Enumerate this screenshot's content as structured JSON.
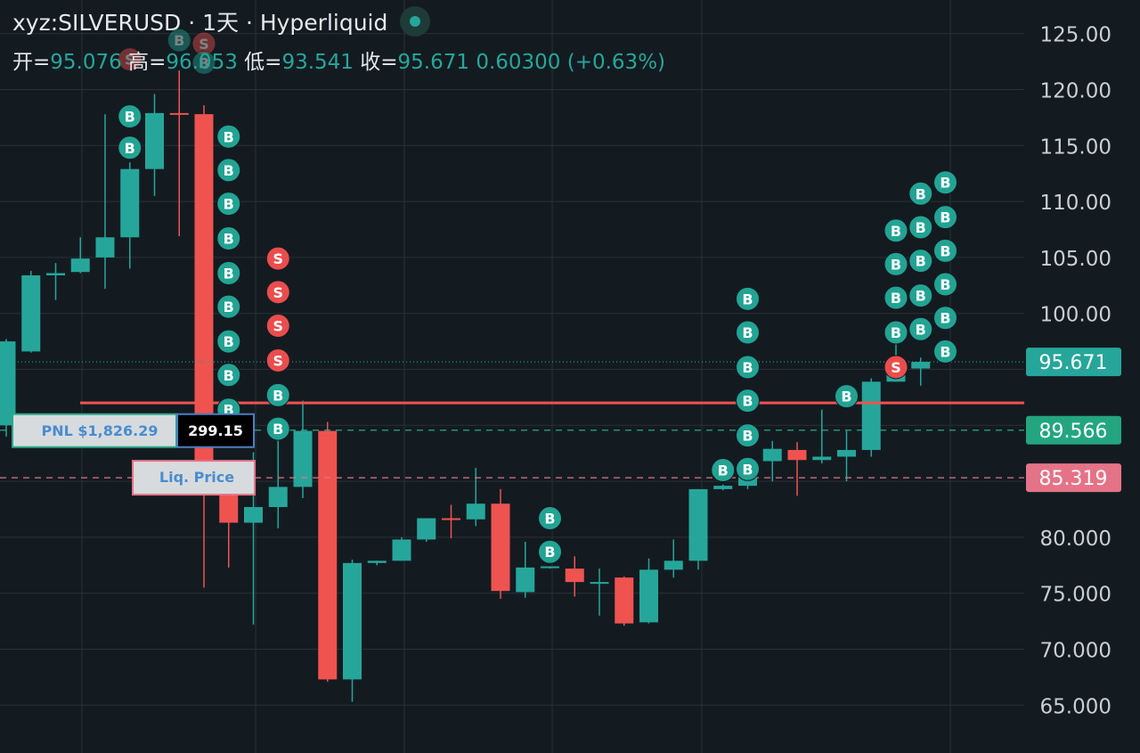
{
  "header": {
    "symbol_line": "xyz:SILVERUSD · 1天 · Hyperliquid",
    "open_label": "开=",
    "open_value": "95.076",
    "high_label": "高=",
    "high_value": "96.053",
    "low_label": "低=",
    "low_value": "93.541",
    "close_label": "收=",
    "close_value": "95.671",
    "change_value": "0.60300 (+0.63%)"
  },
  "colors": {
    "up": "#26a69a",
    "down": "#ef5350",
    "background": "#131b21",
    "grid": "#2a3036",
    "liq": "#e57387",
    "avg": "#2aa889",
    "axis_text": "#c9ced3"
  },
  "price_axis": {
    "ticks": [
      "125.00",
      "120.00",
      "115.00",
      "110.00",
      "105.00",
      "100.00",
      "80.000",
      "75.000",
      "70.000",
      "65.000"
    ]
  },
  "chart_data": {
    "type": "candlestick",
    "y_range": [
      60,
      127
    ],
    "price_labels": {
      "last": "95.671",
      "avg_entry": "89.566",
      "liquidation": "85.319"
    },
    "levels": {
      "last": 95.671,
      "avg_entry": 89.566,
      "liquidation": 85.319,
      "take_profit": 92.0
    },
    "position": {
      "pnl_label": "PNL $1,826.29",
      "size": "299.15",
      "liq_label": "Liq. Price"
    },
    "candles": [
      {
        "o": 90.0,
        "h": 97.7,
        "l": 89.0,
        "c": 97.5
      },
      {
        "o": 96.6,
        "h": 103.8,
        "l": 96.5,
        "c": 103.4
      },
      {
        "o": 103.4,
        "h": 104.5,
        "l": 101.2,
        "c": 103.6
      },
      {
        "o": 103.7,
        "h": 106.8,
        "l": 103.6,
        "c": 104.9
      },
      {
        "o": 105.0,
        "h": 117.8,
        "l": 102.2,
        "c": 106.8
      },
      {
        "o": 106.8,
        "h": 113.5,
        "l": 104.0,
        "c": 112.9
      },
      {
        "o": 112.9,
        "h": 119.6,
        "l": 110.5,
        "c": 117.9
      },
      {
        "o": 117.9,
        "h": 121.7,
        "l": 106.9,
        "c": 117.8
      },
      {
        "o": 117.8,
        "h": 118.6,
        "l": 75.5,
        "c": 84.5
      },
      {
        "o": 84.5,
        "h": 86.5,
        "l": 77.3,
        "c": 81.3
      },
      {
        "o": 81.3,
        "h": 87.6,
        "l": 72.2,
        "c": 82.7
      },
      {
        "o": 82.7,
        "h": 89.4,
        "l": 80.8,
        "c": 84.5
      },
      {
        "o": 84.5,
        "h": 92.2,
        "l": 83.5,
        "c": 89.5
      },
      {
        "o": 89.5,
        "h": 90.3,
        "l": 67.1,
        "c": 67.3
      },
      {
        "o": 67.3,
        "h": 78.0,
        "l": 65.3,
        "c": 77.7
      },
      {
        "o": 77.7,
        "h": 77.9,
        "l": 77.5,
        "c": 77.9
      },
      {
        "o": 77.9,
        "h": 80.0,
        "l": 77.9,
        "c": 79.8
      },
      {
        "o": 79.8,
        "h": 81.7,
        "l": 79.6,
        "c": 81.7
      },
      {
        "o": 81.7,
        "h": 82.9,
        "l": 79.9,
        "c": 81.6
      },
      {
        "o": 81.6,
        "h": 86.2,
        "l": 81.0,
        "c": 83.0
      },
      {
        "o": 83.0,
        "h": 84.3,
        "l": 74.5,
        "c": 75.2
      },
      {
        "o": 75.1,
        "h": 79.6,
        "l": 74.6,
        "c": 77.3
      },
      {
        "o": 77.3,
        "h": 77.4,
        "l": 77.2,
        "c": 77.4
      },
      {
        "o": 77.2,
        "h": 78.3,
        "l": 74.7,
        "c": 76.0
      },
      {
        "o": 76.0,
        "h": 77.2,
        "l": 73.0,
        "c": 76.0
      },
      {
        "o": 76.4,
        "h": 76.5,
        "l": 72.1,
        "c": 72.3
      },
      {
        "o": 72.4,
        "h": 78.1,
        "l": 72.3,
        "c": 77.1
      },
      {
        "o": 77.1,
        "h": 79.8,
        "l": 76.4,
        "c": 77.9
      },
      {
        "o": 77.9,
        "h": 84.3,
        "l": 77.1,
        "c": 84.3
      },
      {
        "o": 84.3,
        "h": 84.7,
        "l": 84.2,
        "c": 84.6
      },
      {
        "o": 84.6,
        "h": 86.9,
        "l": 84.3,
        "c": 86.8
      },
      {
        "o": 86.8,
        "h": 88.6,
        "l": 85.0,
        "c": 87.9
      },
      {
        "o": 87.8,
        "h": 88.5,
        "l": 83.7,
        "c": 86.9
      },
      {
        "o": 86.9,
        "h": 91.4,
        "l": 86.6,
        "c": 87.2
      },
      {
        "o": 87.2,
        "h": 89.5,
        "l": 85.0,
        "c": 87.8
      },
      {
        "o": 87.8,
        "h": 94.2,
        "l": 87.2,
        "c": 93.9
      },
      {
        "o": 93.9,
        "h": 97.7,
        "l": 94.0,
        "c": 95.0
      },
      {
        "o": 95.076,
        "h": 96.053,
        "l": 93.541,
        "c": 95.671
      }
    ],
    "markers": [
      {
        "i": 5,
        "t": "B",
        "p": 117.6
      },
      {
        "i": 5,
        "t": "B",
        "p": 114.8
      },
      {
        "i": 5,
        "t": "S",
        "p": 122.7
      },
      {
        "i": 7,
        "t": "B",
        "p": 124.4
      },
      {
        "i": 8,
        "t": "S",
        "p": 124.1
      },
      {
        "i": 8,
        "t": "B",
        "p": 122.4
      },
      {
        "i": 9,
        "t": "B",
        "p": 115.8
      },
      {
        "i": 9,
        "t": "B",
        "p": 112.8
      },
      {
        "i": 9,
        "t": "B",
        "p": 109.8
      },
      {
        "i": 9,
        "t": "B",
        "p": 106.7
      },
      {
        "i": 9,
        "t": "B",
        "p": 103.6
      },
      {
        "i": 9,
        "t": "B",
        "p": 100.6
      },
      {
        "i": 9,
        "t": "B",
        "p": 97.5
      },
      {
        "i": 9,
        "t": "B",
        "p": 94.5
      },
      {
        "i": 9,
        "t": "B",
        "p": 91.4
      },
      {
        "i": 11,
        "t": "S",
        "p": 104.9
      },
      {
        "i": 11,
        "t": "S",
        "p": 101.9
      },
      {
        "i": 11,
        "t": "S",
        "p": 98.9
      },
      {
        "i": 11,
        "t": "S",
        "p": 95.8
      },
      {
        "i": 11,
        "t": "B",
        "p": 92.7
      },
      {
        "i": 11,
        "t": "B",
        "p": 89.7
      },
      {
        "i": 22,
        "t": "B",
        "p": 81.7
      },
      {
        "i": 22,
        "t": "B",
        "p": 78.7
      },
      {
        "i": 30,
        "t": "B",
        "p": 101.3
      },
      {
        "i": 30,
        "t": "B",
        "p": 98.3
      },
      {
        "i": 30,
        "t": "B",
        "p": 95.2
      },
      {
        "i": 30,
        "t": "B",
        "p": 92.2
      },
      {
        "i": 30,
        "t": "B",
        "p": 89.1
      },
      {
        "i": 30,
        "t": "B",
        "p": 86.1
      },
      {
        "i": 29,
        "t": "B",
        "p": 86.0
      },
      {
        "i": 34,
        "t": "B",
        "p": 92.6
      },
      {
        "i": 36,
        "t": "S",
        "p": 95.2
      },
      {
        "i": 36,
        "t": "B",
        "p": 98.3
      },
      {
        "i": 36,
        "t": "B",
        "p": 101.4
      },
      {
        "i": 36,
        "t": "B",
        "p": 104.4
      },
      {
        "i": 36,
        "t": "B",
        "p": 107.4
      },
      {
        "i": 37,
        "t": "B",
        "p": 98.6
      },
      {
        "i": 37,
        "t": "B",
        "p": 101.6
      },
      {
        "i": 37,
        "t": "B",
        "p": 104.7
      },
      {
        "i": 37,
        "t": "B",
        "p": 107.7
      },
      {
        "i": 37,
        "t": "B",
        "p": 110.7
      },
      {
        "i": 38,
        "t": "B",
        "p": 96.6
      },
      {
        "i": 38,
        "t": "B",
        "p": 99.6
      },
      {
        "i": 38,
        "t": "B",
        "p": 102.6
      },
      {
        "i": 38,
        "t": "B",
        "p": 105.6
      },
      {
        "i": 38,
        "t": "B",
        "p": 108.6
      },
      {
        "i": 38,
        "t": "B",
        "p": 111.7
      }
    ]
  }
}
